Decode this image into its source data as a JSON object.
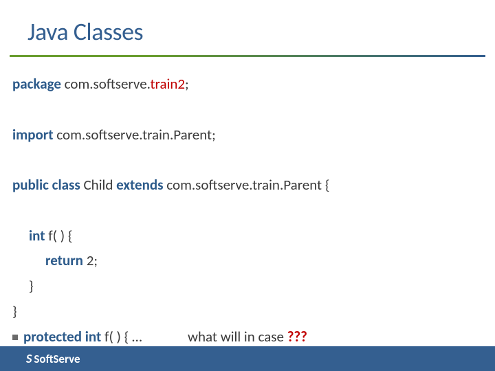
{
  "slide": {
    "title": "Java Classes",
    "title_color": "#345f90",
    "title_fontsize": 36,
    "gradient": {
      "from": "#6a9d2f",
      "to": "#345f90"
    },
    "footer_bg": "#345f90",
    "footer_text_color": "#ffffff",
    "code_color": "#3a3a3a",
    "keyword_color": "#2c5a8a",
    "highlight_color": "#c00000",
    "code_fontsize": 21
  },
  "code": {
    "line1_kw": "package",
    "line1_pkg_a": " com.softserve.",
    "line1_pkg_red": "train2",
    "line1_semi": ";",
    "line2_kw": "import",
    "line2_rest": " com.softserve.train.Parent;",
    "line3_kw1": "public class",
    "line3_mid": " Child ",
    "line3_kw2": "extends",
    "line3_rest": " com.softserve.train.Parent {",
    "line4_kw": "int",
    "line4_rest": " f( ) {",
    "line5_kw": "return",
    "line5_rest": " 2;",
    "line6": "}",
    "line7": "}",
    "bullet_kw": "protected int",
    "bullet_rest1": " f( ) { …",
    "bullet_gap": "              ",
    "bullet_q": "what will in case ",
    "bullet_qmark": "???"
  },
  "footer": {
    "icon": "S",
    "brand": "SoftServe"
  }
}
